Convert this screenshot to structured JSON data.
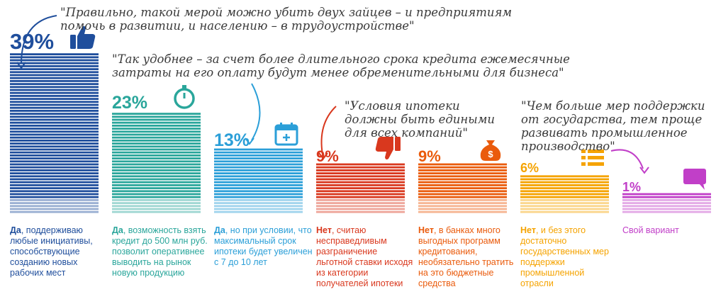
{
  "chart_data": {
    "type": "bar",
    "unit": "%",
    "value_labels": [
      "39%",
      "23%",
      "13%",
      "9%",
      "9%",
      "6%",
      "1%"
    ],
    "values": [
      39,
      23,
      13,
      9,
      9,
      6,
      1
    ],
    "colors": [
      "#1f4e9c",
      "#2aa69b",
      "#2b9fd8",
      "#d9381e",
      "#ea5b0c",
      "#f5a300",
      "#c13fc8"
    ],
    "options": [
      {
        "lead": "Да",
        "rest": ", поддерживаю любые инициативы, способствующие созданию новых рабочих мест"
      },
      {
        "lead": "Да",
        "rest": ", возможность взять кредит до 500 млн руб. позволит оперативнее выводить на рынок новую продукцию"
      },
      {
        "lead": "Да",
        "rest": ", но при условии, что максимальный срок ипотеки будет увеличен с 7 до 10 лет"
      },
      {
        "lead": "Нет",
        "rest": ", считаю несправедливым разграничение льготной ставки исходя из категории получателей ипотеки"
      },
      {
        "lead": "Нет",
        "rest": ", в банках много выгодных программ кредитования, необязательно тратить на это бюджетные средства"
      },
      {
        "lead": "Нет",
        "rest": ", и без этого достаточно государственных мер поддержки промышленной отрасли"
      },
      {
        "lead": "",
        "rest": "Свой вариант"
      }
    ],
    "quotes": [
      "\"Правильно, такой мерой можно убить двух зайцев – и предприятиям\nпомочь в развитии, и населению – в трудоустройстве\"",
      "\"Так удобнее – за счет более длительного срока кредита ежемесячные\nзатраты на его оплату будут менее обременительными для бизнеса\"",
      "\"Условия ипотеки\nдолжны быть едиными\nдля всех компаний\"",
      "\"Чем больше мер поддержки\nот государства, тем проще\nразвивать промышленное\nпроизводство\""
    ],
    "icons": [
      "thumbs-up-icon",
      "stopwatch-icon",
      "calendar-icon",
      "thumbs-down-icon",
      "money-bag-icon",
      "list-icon",
      "speech-bubble-icon"
    ]
  }
}
